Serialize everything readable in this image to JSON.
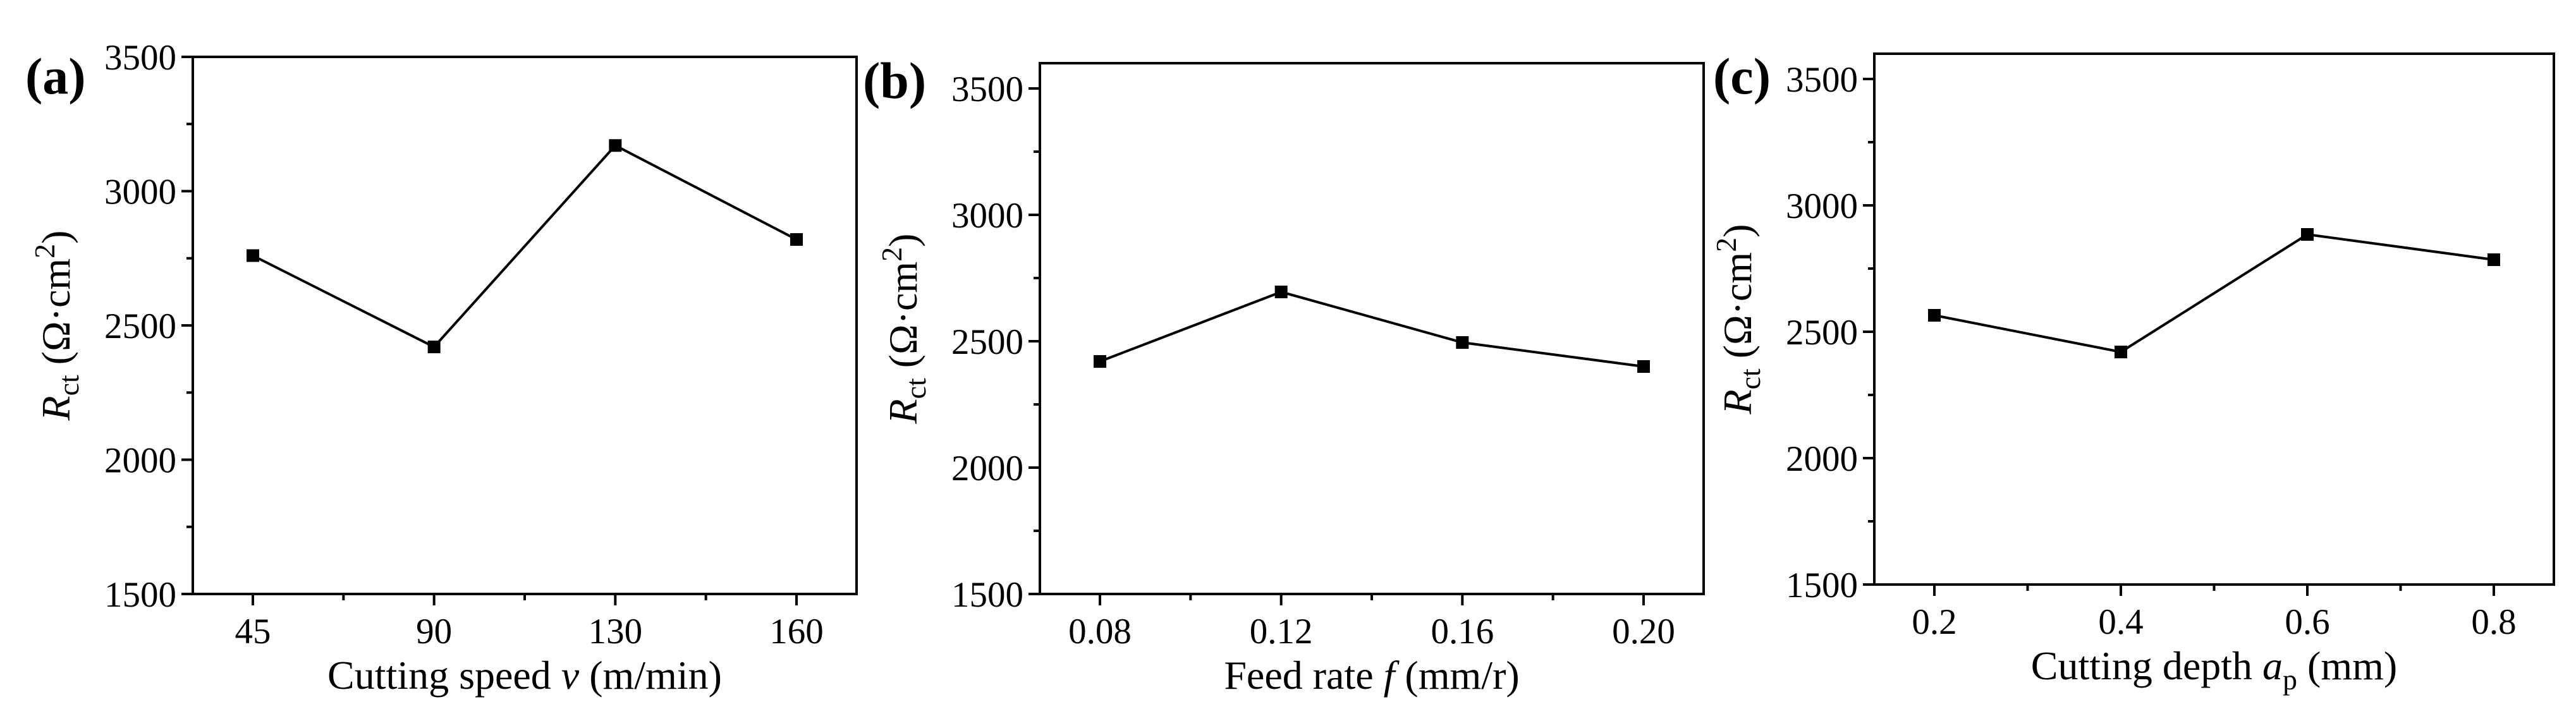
{
  "figure": {
    "line_color": "#000000",
    "marker_color": "#000000",
    "background": "#ffffff"
  },
  "chart_data": [
    {
      "type": "line",
      "panel_label": "(a)",
      "title": "",
      "xlabel": "Cutting speed v (m/min)",
      "xlabel_parts": [
        "Cutting speed ",
        "v",
        " (m/min)"
      ],
      "ylabel": "Rct (Ω·cm2)",
      "ylabel_parts": [
        "R",
        "ct",
        "(Ω·cm",
        "2",
        ")"
      ],
      "categories": [
        "45",
        "90",
        "130",
        "160"
      ],
      "series": [
        {
          "name": "Rct",
          "values": [
            2760,
            2420,
            3170,
            2820
          ]
        }
      ],
      "ylim": [
        1500,
        3500
      ],
      "yticks": [
        1500,
        2000,
        2500,
        3000,
        3500
      ],
      "yminor_step": 250,
      "grid": false,
      "legend": "none"
    },
    {
      "type": "line",
      "panel_label": "(b)",
      "title": "",
      "xlabel": "Feed rate f (mm/r)",
      "xlabel_parts": [
        "Feed rate ",
        "f",
        " (mm/r)"
      ],
      "ylabel": "Rct (Ω·cm2)",
      "ylabel_parts": [
        "R",
        "ct",
        "(Ω·cm",
        "2",
        ")"
      ],
      "categories": [
        "0.08",
        "0.12",
        "0.16",
        "0.20"
      ],
      "series": [
        {
          "name": "Rct",
          "values": [
            2420,
            2695,
            2495,
            2400
          ]
        }
      ],
      "ylim": [
        1500,
        3600
      ],
      "yticks": [
        1500,
        2000,
        2500,
        3000,
        3500
      ],
      "yminor_step": 250,
      "grid": false,
      "legend": "none"
    },
    {
      "type": "line",
      "panel_label": "(c)",
      "title": "",
      "xlabel": "Cutting depth ap (mm)",
      "xlabel_parts": [
        "Cutting depth ",
        "a",
        "p",
        " (mm)"
      ],
      "ylabel": "Rct (Ω·cm2)",
      "ylabel_parts": [
        "R",
        "ct",
        "(Ω·cm",
        "2",
        ")"
      ],
      "categories": [
        "0.2",
        "0.4",
        "0.6",
        "0.8"
      ],
      "series": [
        {
          "name": "Rct",
          "values": [
            2565,
            2420,
            2885,
            2785
          ]
        }
      ],
      "ylim": [
        1500,
        3600
      ],
      "yticks": [
        1500,
        2000,
        2500,
        3000,
        3500
      ],
      "yminor_step": 250,
      "grid": false,
      "legend": "none"
    }
  ]
}
